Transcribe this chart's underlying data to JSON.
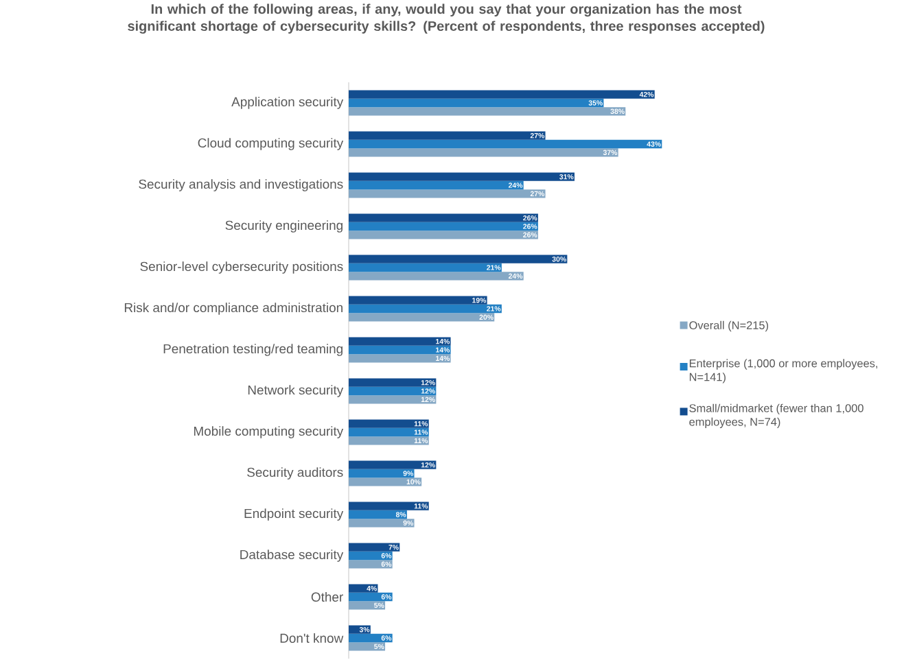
{
  "chart_data": {
    "type": "bar",
    "orientation": "horizontal",
    "title": "In which of the following areas, if any, would you say that your organization has the most significant shortage of cybersecurity skills? (Percent of respondents, three responses accepted)",
    "categories": [
      "Application security",
      "Cloud computing security",
      "Security analysis and investigations",
      "Security engineering",
      "Senior-level cybersecurity positions",
      "Risk and/or compliance administration",
      "Penetration testing/red teaming",
      "Network security",
      "Mobile computing security",
      "Security auditors",
      "Endpoint security",
      "Database security",
      "Other",
      "Don't know"
    ],
    "series": [
      {
        "name": "Overall (N=215)",
        "color": "#85a8c5",
        "values": [
          38,
          37,
          27,
          26,
          24,
          20,
          14,
          12,
          11,
          10,
          9,
          6,
          5,
          5
        ],
        "value_labels": [
          "38%",
          "37%",
          "27%",
          "26%",
          "24%",
          "20%",
          "14%",
          "12%",
          "11%",
          "10%",
          "9%",
          "6%",
          "5%",
          "5%"
        ]
      },
      {
        "name": "Enterprise (1,000 or more employees, N=141)",
        "color": "#2380c4",
        "values": [
          35,
          43,
          24,
          26,
          21,
          21,
          14,
          12,
          11,
          9,
          8,
          6,
          6,
          6
        ],
        "value_labels": [
          "35%",
          "43%",
          "24%",
          "26%",
          "21%",
          "21%",
          "14%",
          "12%",
          "11%",
          "9%",
          "8%",
          "6%",
          "6%",
          "6%"
        ]
      },
      {
        "name": "Small/midmarket (fewer than 1,000 employees, N=74)",
        "color": "#134d8f",
        "values": [
          42,
          27,
          31,
          26,
          30,
          19,
          14,
          12,
          11,
          12,
          11,
          7,
          4,
          3
        ],
        "value_labels": [
          "42%",
          "27%",
          "31%",
          "26%",
          "30%",
          "19%",
          "14%",
          "12%",
          "11%",
          "12%",
          "11%",
          "7%",
          "4%",
          "3%"
        ]
      }
    ],
    "legend": "right"
  }
}
